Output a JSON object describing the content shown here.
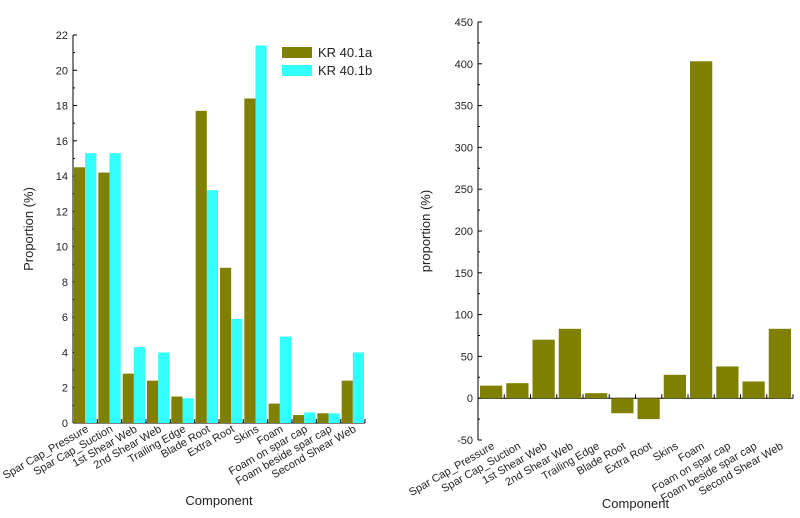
{
  "colors": {
    "a": "#808000",
    "b": "#33ffff",
    "axis": "#000000"
  },
  "chart_data": [
    {
      "type": "bar",
      "xlabel": "Component",
      "ylabel": "Proportion (%)",
      "ylim": [
        0,
        22
      ],
      "yticks": [
        "0",
        "2",
        "4",
        "6",
        "8",
        "10",
        "12",
        "14",
        "16",
        "18",
        "20",
        "22"
      ],
      "legend_position": "top-right",
      "categories": [
        "Spar Cap_Pressure",
        "Spar Cap_Suction",
        "1st Shear Web",
        "2nd Shear Web",
        "Trailing Edge",
        "Blade Root",
        "Extra Root",
        "Skins",
        "Foam",
        "Foam on spar cap",
        "Foam beside spar cap",
        "Second Shear Web"
      ],
      "series": [
        {
          "name": "KR 40.1a",
          "values": [
            14.5,
            14.2,
            2.8,
            2.4,
            1.5,
            17.7,
            8.8,
            18.4,
            1.1,
            0.45,
            0.55,
            2.4
          ]
        },
        {
          "name": "KR 40.1b",
          "values": [
            15.3,
            15.3,
            4.3,
            4.0,
            1.4,
            13.2,
            5.9,
            21.4,
            4.9,
            0.6,
            0.55,
            4.0
          ]
        }
      ]
    },
    {
      "type": "bar",
      "xlabel": "Component",
      "ylabel": "proportion (%)",
      "ylim": [
        -50,
        450
      ],
      "yticks": [
        "-50",
        "0",
        "50",
        "100",
        "150",
        "200",
        "250",
        "300",
        "350",
        "400",
        "450"
      ],
      "categories": [
        "Spar Cap_Pressure",
        "Spar Cap_Suction",
        "1st Shear Web",
        "2nd Shear Web",
        "Trailing Edge",
        "Blade Root",
        "Extra Root",
        "Skins",
        "Foam",
        "Foam on spar cap",
        "Foam beside spar cap",
        "Second Shear Web"
      ],
      "series": [
        {
          "values": [
            15,
            18,
            70,
            83,
            6,
            -18,
            -25,
            28,
            403,
            38,
            20,
            83
          ]
        }
      ]
    }
  ]
}
